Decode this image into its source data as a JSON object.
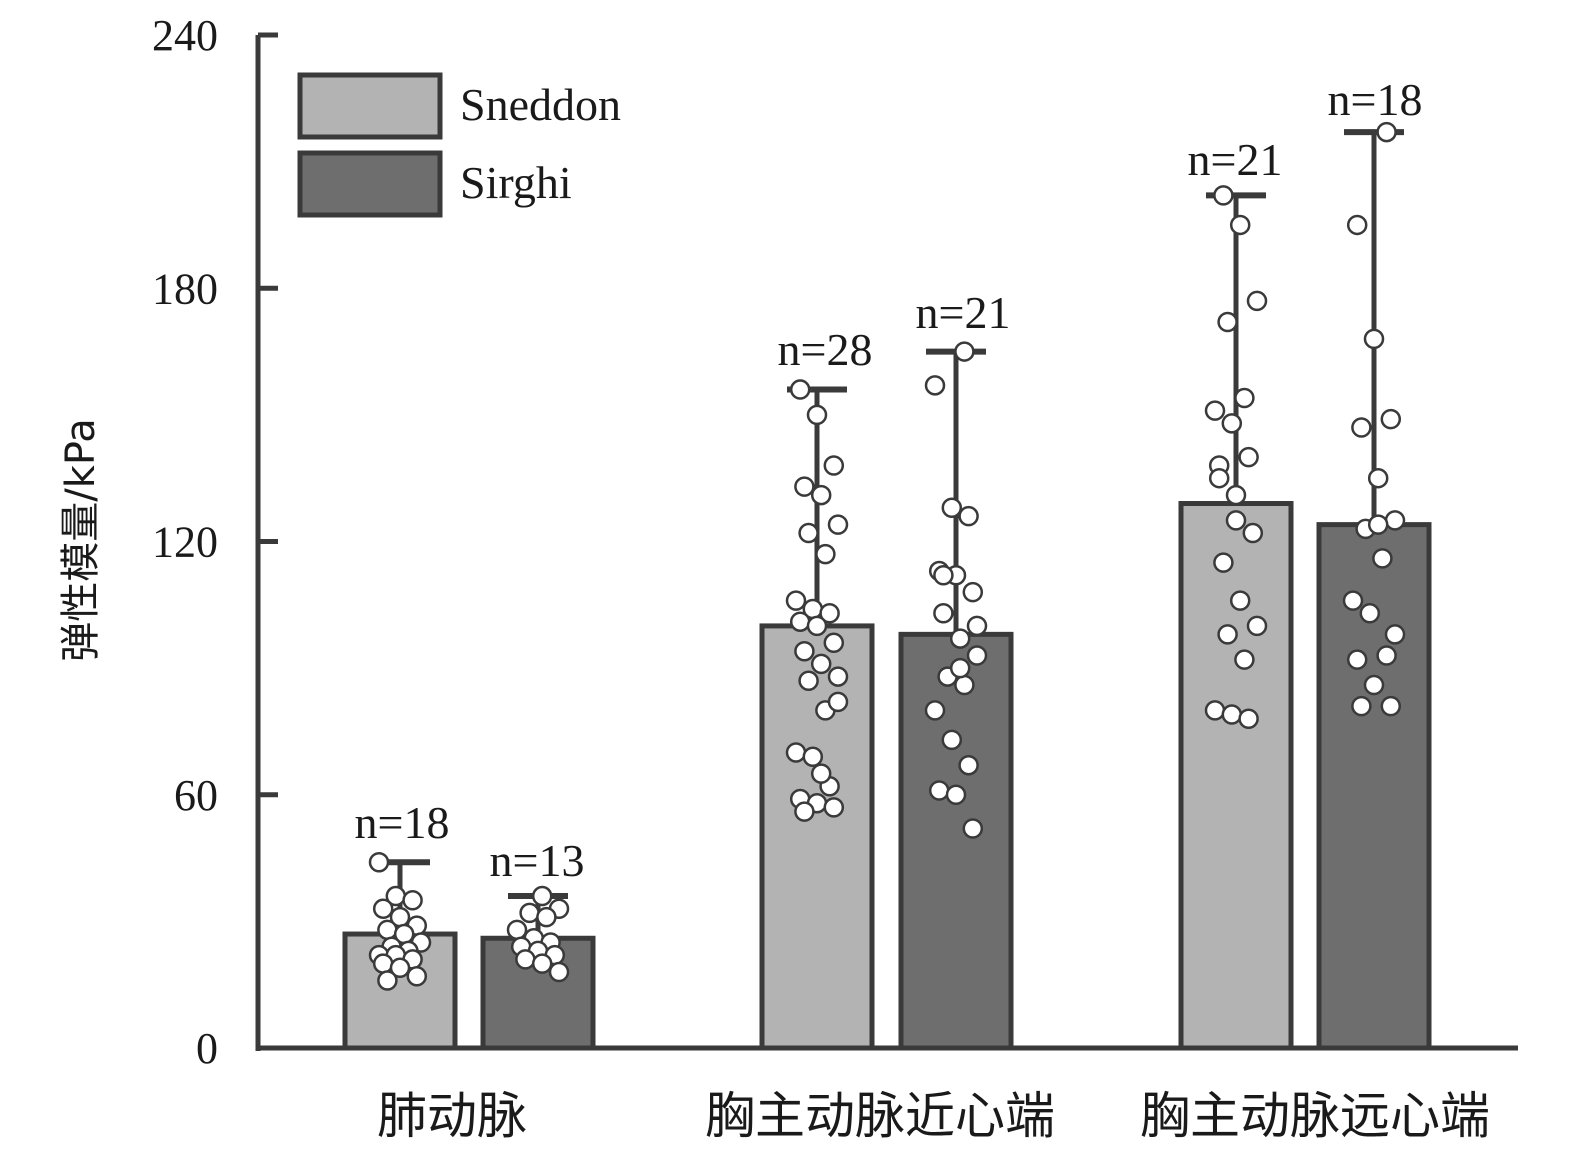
{
  "chart_data": {
    "type": "bar",
    "ylabel": "弹性模量/kPa",
    "xlabel": "",
    "ylim": [
      0,
      240
    ],
    "yticks": [
      0,
      60,
      120,
      180,
      240
    ],
    "categories": [
      "肺动脉",
      "胸主动脉近心端",
      "胸主动脉远心端"
    ],
    "legend": {
      "position": "top-left",
      "entries": [
        "Sneddon",
        "Sirghi"
      ]
    },
    "colors": {
      "Sneddon": "#b3b3b3",
      "Sirghi": "#6e6e6e",
      "outline": "#3a3a3a",
      "point_fill": "#ffffff"
    },
    "series": [
      {
        "name": "Sneddon",
        "values": [
          27,
          100,
          129
        ],
        "error_upper": [
          44,
          156,
          202
        ],
        "n_labels": [
          "n=18",
          "n=28",
          "n=21"
        ],
        "points": [
          [
            44,
            36,
            35,
            33,
            31,
            29,
            28,
            27,
            25,
            24,
            23,
            22,
            22,
            21,
            20,
            19,
            17,
            16
          ],
          [
            156,
            150,
            138,
            133,
            131,
            124,
            122,
            117,
            106,
            104,
            103,
            101,
            100,
            96,
            94,
            91,
            88,
            87,
            80,
            70,
            69,
            62,
            59,
            58,
            57,
            56,
            65,
            82
          ],
          [
            202,
            195,
            177,
            172,
            154,
            151,
            148,
            140,
            138,
            131,
            122,
            115,
            106,
            100,
            98,
            92,
            80,
            79,
            78,
            135,
            125
          ]
        ]
      },
      {
        "name": "Sirghi",
        "values": [
          26,
          98,
          124
        ],
        "error_upper": [
          36,
          165,
          217
        ],
        "n_labels": [
          "n=13",
          "n=21"
        ],
        "points": [
          [
            36,
            33,
            32,
            31,
            28,
            26,
            25,
            24,
            23,
            22,
            21,
            20,
            18
          ],
          [
            165,
            157,
            128,
            126,
            113,
            112,
            108,
            103,
            97,
            93,
            88,
            86,
            80,
            73,
            67,
            61,
            60,
            52,
            112,
            90,
            100
          ],
          [
            217,
            195,
            168,
            149,
            147,
            135,
            125,
            123,
            116,
            106,
            103,
            93,
            92,
            86,
            81,
            81,
            124,
            98
          ]
        ]
      }
    ],
    "extra_n_label": "n=18"
  }
}
